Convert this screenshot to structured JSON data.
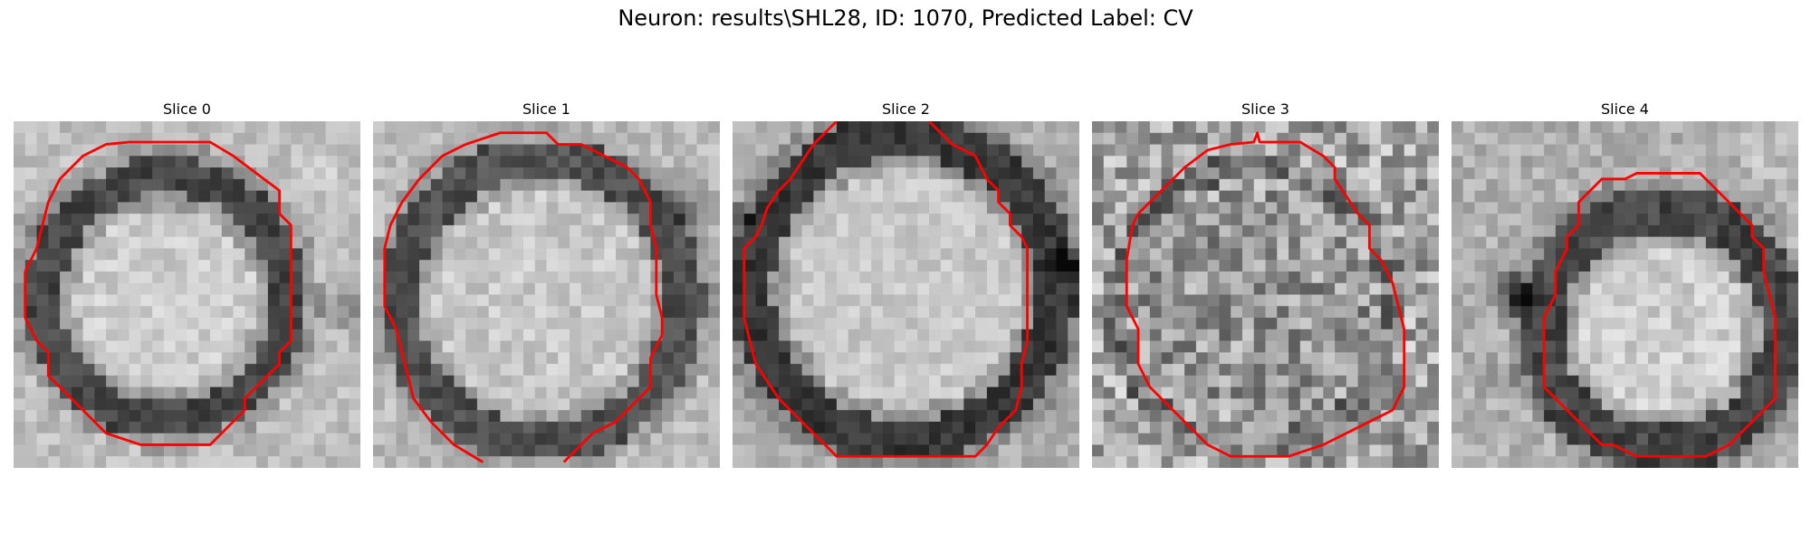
{
  "figure": {
    "title": "Neuron: results\\SHL28, ID: 1070, Predicted Label: CV"
  },
  "panels": [
    {
      "title": "Slice 0"
    },
    {
      "title": "Slice 1"
    },
    {
      "title": "Slice 2"
    },
    {
      "title": "Slice 3"
    },
    {
      "title": "Slice 4"
    }
  ],
  "style": {
    "contour_color": "#ff0000",
    "colormap": "gray"
  }
}
